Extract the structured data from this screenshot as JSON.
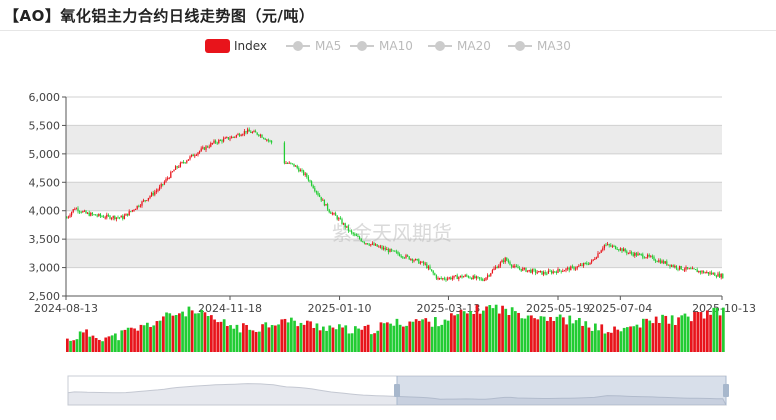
{
  "title": "【AO】氧化铝主力合约日线走势图（元/吨）",
  "watermark": "紫金天风期货",
  "colors": {
    "up": "#e8141b",
    "down": "#22cc33",
    "legend_active": "#e8141b",
    "legend_inactive": "#cccccc"
  },
  "legend": [
    {
      "label": "Index",
      "active": true
    },
    {
      "label": "MA5",
      "active": false
    },
    {
      "label": "MA10",
      "active": false
    },
    {
      "label": "MA20",
      "active": false
    },
    {
      "label": "MA30",
      "active": false
    }
  ],
  "chart_data": {
    "type": "candlestick",
    "y_ticks": [
      "6,000",
      "5,500",
      "5,000",
      "4,500",
      "4,000",
      "3,500",
      "3,000",
      "2,500"
    ],
    "y_tick_values": [
      6000,
      5500,
      5000,
      4500,
      4000,
      3500,
      3000,
      2500
    ],
    "ylim": [
      2500,
      6000
    ],
    "x_tick_labels": [
      "2024-08-13",
      "2024-11-18",
      "2025-01-10",
      "2025-03-13",
      "2025-05-19",
      "2025-07-04",
      "2025-10-13"
    ],
    "x_tick_fraction": [
      0,
      0.25,
      0.417,
      0.583,
      0.75,
      0.845,
      1
    ],
    "grid": true,
    "legend_position": "top",
    "close_path": [
      [
        0,
        3880
      ],
      [
        5,
        4050
      ],
      [
        12,
        3950
      ],
      [
        22,
        3900
      ],
      [
        35,
        3880
      ],
      [
        45,
        4100
      ],
      [
        58,
        4400
      ],
      [
        68,
        4750
      ],
      [
        80,
        5000
      ],
      [
        92,
        5200
      ],
      [
        104,
        5300
      ],
      [
        112,
        5400
      ],
      [
        120,
        5350
      ],
      [
        128,
        5200
      ],
      [
        136,
        4850
      ],
      [
        142,
        4800
      ],
      [
        150,
        4600
      ],
      [
        158,
        4250
      ],
      [
        164,
        4000
      ],
      [
        170,
        3850
      ],
      [
        178,
        3600
      ],
      [
        186,
        3450
      ],
      [
        196,
        3350
      ],
      [
        206,
        3250
      ],
      [
        216,
        3150
      ],
      [
        224,
        3050
      ],
      [
        232,
        2800
      ],
      [
        240,
        2820
      ],
      [
        250,
        2850
      ],
      [
        260,
        2780
      ],
      [
        268,
        3000
      ],
      [
        274,
        3150
      ],
      [
        280,
        3000
      ],
      [
        288,
        2950
      ],
      [
        298,
        2900
      ],
      [
        308,
        2950
      ],
      [
        318,
        3000
      ],
      [
        328,
        3100
      ],
      [
        336,
        3400
      ],
      [
        344,
        3350
      ],
      [
        352,
        3250
      ],
      [
        362,
        3200
      ],
      [
        372,
        3100
      ],
      [
        382,
        3000
      ],
      [
        392,
        2950
      ],
      [
        402,
        2900
      ],
      [
        410,
        2850
      ]
    ],
    "highs": [
      4150,
      5550,
      5500,
      3250,
      3600,
      3350,
      2950
    ],
    "volume_profile": [
      0.15,
      0.3,
      0.25,
      0.2,
      0.35,
      0.45,
      0.6,
      0.75,
      0.8,
      0.7,
      0.55,
      0.45,
      0.4,
      0.5,
      0.6,
      0.55,
      0.5,
      0.45,
      0.4,
      0.35,
      0.4,
      0.5,
      0.55,
      0.6,
      0.55,
      0.65,
      0.75,
      0.85,
      0.9,
      0.8,
      0.75,
      0.7,
      0.65,
      0.6,
      0.5,
      0.4,
      0.35,
      0.45,
      0.55,
      0.65,
      0.6,
      0.7,
      0.75,
      0.8
    ],
    "navigator": {
      "selected_range": [
        0.5,
        1.0
      ]
    }
  }
}
